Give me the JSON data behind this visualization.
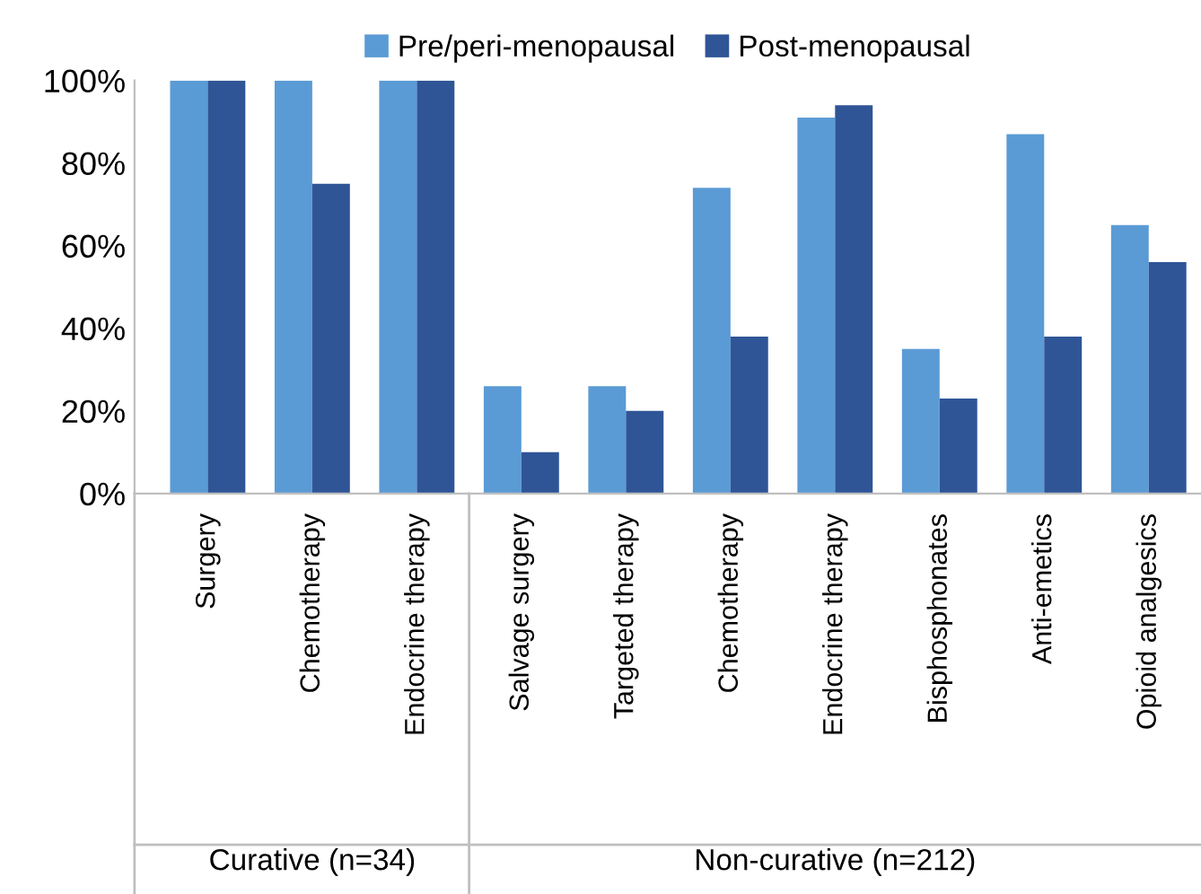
{
  "chart_data": {
    "type": "bar",
    "categories": [
      "Surgery",
      "Chemotherapy",
      "Endocrine therapy",
      "Salvage surgery",
      "Targeted therapy",
      "Chemotherapy",
      "Endocrine therapy",
      "Bisphosphonates",
      "Anti-emetics",
      "Opioid analgesics"
    ],
    "series": [
      {
        "name": "Pre/peri-menopausal",
        "color": "#5b9bd5",
        "values": [
          100,
          100,
          100,
          26,
          26,
          74,
          91,
          35,
          87,
          65
        ]
      },
      {
        "name": "Post-menopausal",
        "color": "#2f5597",
        "values": [
          100,
          75,
          100,
          10,
          20,
          38,
          94,
          23,
          38,
          56
        ]
      }
    ],
    "ylim": [
      0,
      100
    ],
    "yticks": [
      {
        "value": 0,
        "label": "0%"
      },
      {
        "value": 20,
        "label": "20%"
      },
      {
        "value": 40,
        "label": "40%"
      },
      {
        "value": 60,
        "label": "60%"
      },
      {
        "value": 80,
        "label": "80%"
      },
      {
        "value": 100,
        "label": "100%"
      }
    ],
    "annotations": [
      "Curative (n=34)",
      "Non-curative (n=212)"
    ],
    "legend": "top",
    "grid": false
  }
}
